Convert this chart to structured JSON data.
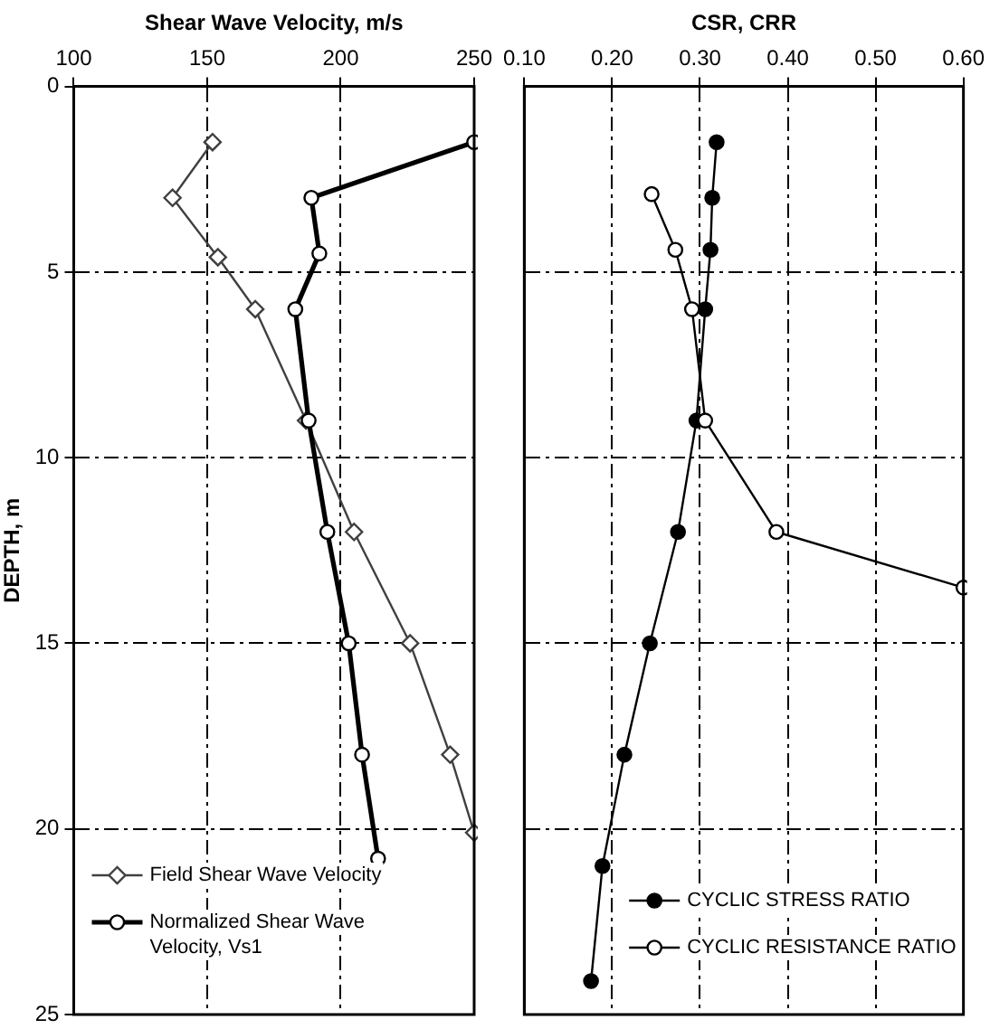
{
  "chart_data": [
    {
      "type": "line",
      "xlabel": "Shear Wave Velocity, m/s",
      "ylabel": "DEPTH, m",
      "xlim": [
        100,
        250
      ],
      "xticks": [
        100,
        150,
        200,
        250
      ],
      "ylim": [
        25,
        0
      ],
      "yticks": [
        0,
        5,
        10,
        15,
        20,
        25
      ],
      "grid": true,
      "line_style": "solid",
      "legend": "bottom left",
      "series": [
        {
          "name": "Field Shear Wave Velocity",
          "color": "#404040",
          "marker": "diamond",
          "colors": [
            "#ffffff",
            "#ffffff",
            "#ffffff",
            "#ffffff",
            "#ffffff",
            "#ffffff",
            "#ffffff",
            "#ffffff",
            "#ffffff"
          ],
          "x": [
            152,
            137,
            154,
            168,
            187,
            205,
            226,
            241,
            250
          ],
          "values": [
            1.5,
            3,
            4.6,
            6,
            9,
            12,
            15,
            18,
            20.1
          ]
        },
        {
          "name": "Normalized Shear Wave Velocity, Vs1",
          "color": "#000000",
          "marker": "circle",
          "colors": [
            "#ffffff",
            "#ffffff",
            "#ffffff",
            "#ffffff",
            "#ffffff",
            "#ffffff",
            "#ffffff",
            "#ffffff",
            "#ffffff"
          ],
          "x": [
            250,
            189,
            192,
            183,
            188,
            195,
            203,
            208,
            214
          ],
          "values": [
            1.5,
            3,
            4.5,
            6,
            9,
            12,
            15,
            18,
            20.8
          ]
        }
      ]
    },
    {
      "type": "line",
      "xlabel": "CSR, CRR",
      "xlim": [
        0.1,
        0.6
      ],
      "xticks": [
        {
          "value": 0.1,
          "label": "0.10"
        },
        {
          "value": 0.2,
          "label": "0.20"
        },
        {
          "value": 0.3,
          "label": "0.30"
        },
        {
          "value": 0.4,
          "label": "0.40"
        },
        {
          "value": 0.5,
          "label": "0.50"
        },
        {
          "value": 0.6,
          "label": "0.60"
        }
      ],
      "ylim": [
        25,
        0
      ],
      "yticks": [
        0,
        5,
        10,
        15,
        20,
        25
      ],
      "grid": true,
      "line_style": "solid",
      "legend": "bottom right",
      "tick_labels": "x",
      "series": [
        {
          "name": "CYCLIC STRESS RATIO",
          "color": "#000000",
          "marker": "circle",
          "x": [
            0.319,
            0.314,
            0.312,
            0.306,
            0.296,
            0.275,
            0.243,
            0.214,
            0.189,
            0.176
          ],
          "values": [
            1.5,
            3,
            4.4,
            6,
            9,
            12,
            15,
            18,
            21,
            24.1
          ]
        },
        {
          "name": "CYCLIC RESISTANCE RATIO",
          "color": "#000000",
          "marker": "circle",
          "colors": [
            "#ffffff",
            "#ffffff",
            "#ffffff",
            "#ffffff",
            "#ffffff",
            "#ffffff"
          ],
          "x": [
            0.245,
            0.272,
            0.291,
            0.306,
            0.387,
            0.6
          ],
          "values": [
            2.9,
            4.4,
            6,
            9,
            12,
            13.5
          ]
        }
      ]
    }
  ]
}
